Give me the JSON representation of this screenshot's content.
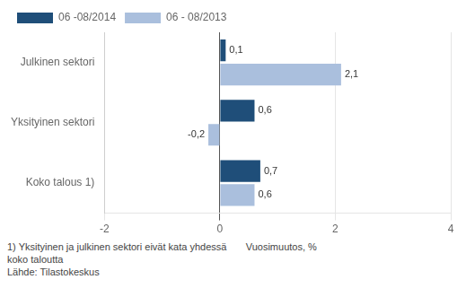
{
  "chart_data": {
    "type": "bar",
    "orientation": "horizontal",
    "categories": [
      "Julkinen sektori",
      "Yksityinen sektori",
      "Koko talous 1)"
    ],
    "series": [
      {
        "name": "06 -08/2014",
        "color": "#1f4e79",
        "values": [
          0.1,
          0.6,
          0.7
        ],
        "value_labels": [
          "0,1",
          "0,6",
          "0,7"
        ]
      },
      {
        "name": "06 - 08/2013",
        "color": "#aabfdd",
        "values": [
          2.1,
          -0.2,
          0.6
        ],
        "value_labels": [
          "2,1",
          "-0,2",
          "0,6"
        ]
      }
    ],
    "xlim": [
      -2,
      4
    ],
    "xticks": [
      -2,
      0,
      2,
      4
    ],
    "grid": true,
    "legend": "upper left",
    "data_labels": true,
    "annotations": [
      "1) Yksityinen ja julkinen sektori eivät kata yhdessä       Vuosimuutos, %\nkoko taloutta",
      "Lähde: Tilastokeskus"
    ]
  }
}
